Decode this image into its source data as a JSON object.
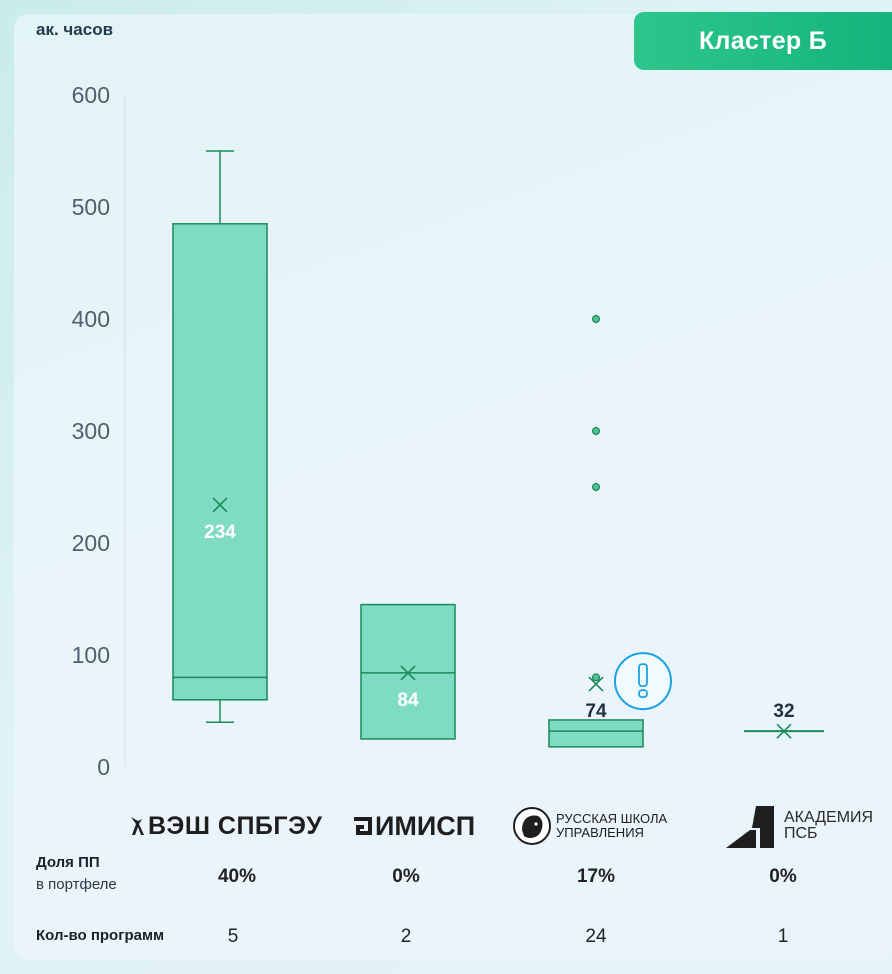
{
  "header": {
    "unit_label": "ак. часов",
    "cluster_badge": "Кластер Б"
  },
  "chart_data": {
    "type": "boxplot",
    "ylim": [
      0,
      600
    ],
    "yticks": [
      0,
      100,
      200,
      300,
      400,
      500,
      600
    ],
    "grid": false,
    "categories": [
      "ВЭШ СПБГЭУ",
      "ИМИСП",
      "Русская школа управления",
      "Академия ПСБ"
    ],
    "boxes": [
      {
        "category": "ВЭШ СПБГЭУ",
        "whisker_low": 40,
        "q1": 60,
        "median": 80,
        "q3": 485,
        "whisker_high": 550,
        "mean": 234,
        "mean_label": "234",
        "outliers": []
      },
      {
        "category": "ИМИСП",
        "whisker_low": 25,
        "q1": 25,
        "median": 84,
        "q3": 145,
        "whisker_high": 145,
        "mean": 84,
        "mean_label": "84",
        "outliers": []
      },
      {
        "category": "Русская школа управления",
        "whisker_low": 18,
        "q1": 18,
        "median": 32,
        "q3": 42,
        "whisker_high": 42,
        "mean": 74,
        "mean_label": "74",
        "outliers": [
          80,
          250,
          300,
          400
        ]
      },
      {
        "category": "Академия ПСБ",
        "whisker_low": 32,
        "q1": 32,
        "median": 32,
        "q3": 32,
        "whisker_high": 32,
        "mean": 32,
        "mean_label": "32",
        "outliers": []
      }
    ],
    "colors": {
      "box_fill": "#7fdcc2",
      "box_stroke": "#1b8a5a",
      "mean_label_inside": "#ffffff",
      "mean_label_outside": "#22313f",
      "warning": "#1aa3e0"
    }
  },
  "logos": {
    "vsh": {
      "text": "ВЭШ СПБГЭУ",
      "icon": "stylized-figure-icon"
    },
    "imisp": {
      "text": "ИМИСП",
      "icon": "imisp-mark-icon"
    },
    "rsu": {
      "line1": "РУССКАЯ ШКОЛА",
      "line2": "УПРАВЛЕНИЯ",
      "icon": "lion-head-icon"
    },
    "psb": {
      "line1": "АКАДЕМИЯ",
      "line2": "ПСБ",
      "icon": "psb-a-mark-icon"
    }
  },
  "table": {
    "share_title": "Доля ПП",
    "share_sub": "в портфеле",
    "count_title": "Кол-во программ",
    "shares": [
      "40%",
      "0%",
      "17%",
      "0%"
    ],
    "counts": [
      "5",
      "2",
      "24",
      "1"
    ]
  }
}
